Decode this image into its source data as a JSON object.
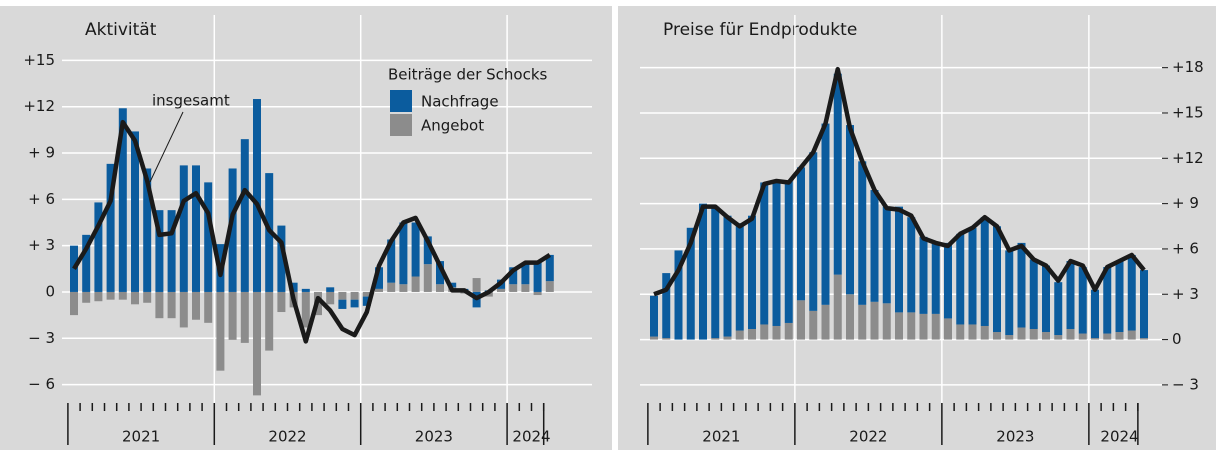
{
  "chart_data": [
    {
      "type": "bar",
      "title": "Aktivität",
      "categories": [
        null,
        null,
        null,
        null,
        null,
        null,
        null,
        null,
        null,
        null,
        null,
        null,
        null,
        null,
        null,
        null,
        null,
        null,
        null,
        null,
        null,
        null,
        null,
        null,
        null,
        null,
        null,
        null,
        null,
        null,
        null,
        null,
        null,
        null,
        null,
        null,
        null,
        null,
        null,
        null
      ],
      "years": [
        "2021",
        "2022",
        "2023",
        "2024"
      ],
      "series": [
        {
          "name": "Nachfrage",
          "color": "#0b5c9e",
          "kind": "bar",
          "values": [
            3.0,
            3.7,
            5.8,
            8.3,
            11.9,
            10.4,
            8.0,
            5.3,
            5.3,
            8.2,
            8.2,
            7.1,
            3.1,
            8.0,
            9.9,
            12.5,
            7.7,
            4.3,
            0.6,
            0.2,
            0,
            0.3,
            -0.6,
            -0.5,
            -0.6,
            1.4,
            2.8,
            4.0,
            3.5,
            1.8,
            1.5,
            0.3,
            0.2,
            -1.0,
            0.1,
            0.6,
            1.1,
            1.3,
            2.0,
            1.7
          ]
        },
        {
          "name": "Angebot",
          "color": "#8c8c8c",
          "kind": "bar",
          "values": [
            -1.5,
            -0.7,
            -0.6,
            -0.5,
            -0.5,
            -0.8,
            -0.7,
            -1.7,
            -1.7,
            -2.3,
            -1.8,
            -2.0,
            -5.1,
            -3.1,
            -3.3,
            -6.7,
            -3.8,
            -1.3,
            -1.0,
            -2.3,
            -1.5,
            -0.8,
            -0.5,
            -0.5,
            -0.3,
            0.2,
            0.6,
            0.5,
            1.0,
            1.8,
            0.5,
            0.3,
            -0.1,
            0.9,
            -0.3,
            0.2,
            0.5,
            0.5,
            -0.2,
            0.7
          ]
        },
        {
          "name": "insgesamt",
          "color": "#1a1a1a",
          "kind": "line",
          "values": [
            1.5,
            2.8,
            4.3,
            5.9,
            11.0,
            9.8,
            7.2,
            3.7,
            3.8,
            5.9,
            6.4,
            5.1,
            1.1,
            5.0,
            6.6,
            5.7,
            4.0,
            3.2,
            -0.5,
            -3.2,
            -0.4,
            -1.2,
            -2.4,
            -2.8,
            -1.3,
            1.7,
            3.3,
            4.5,
            4.8,
            3.3,
            1.7,
            0.1,
            0.1,
            -0.4,
            0,
            0.6,
            1.4,
            1.9,
            1.9,
            2.4
          ]
        }
      ],
      "legend": true,
      "legend_title": "Beiträge der Schocks",
      "ylim": [
        -7,
        16
      ],
      "yticks": [
        {
          "value": 15,
          "label": "+15"
        },
        {
          "value": 12,
          "label": "+12"
        },
        {
          "value": 9,
          "label": "+ 9"
        },
        {
          "value": 6,
          "label": "+ 6"
        },
        {
          "value": 3,
          "label": "+ 3"
        },
        0,
        {
          "value": -3,
          "label": "− 3"
        },
        {
          "value": -6,
          "label": "− 6"
        }
      ],
      "axis_side": "left",
      "grid": true
    },
    {
      "type": "bar",
      "title": "Preise für Endprodukte",
      "categories": [
        null,
        null,
        null,
        null,
        null,
        null,
        null,
        null,
        null,
        null,
        null,
        null,
        null,
        null,
        null,
        null,
        null,
        null,
        null,
        null,
        null,
        null,
        null,
        null,
        null,
        null,
        null,
        null,
        null,
        null,
        null,
        null,
        null,
        null,
        null,
        null,
        null,
        null,
        null,
        null,
        null
      ],
      "years": [
        "2021",
        "2022",
        "2023",
        "2024"
      ],
      "series": [
        {
          "color": "#0b5c9e",
          "kind": "bar",
          "values": [
            2.7,
            4.3,
            5.9,
            7.4,
            9.0,
            8.7,
            8.0,
            7.1,
            7.5,
            9.4,
            9.6,
            9.4,
            8.8,
            10.5,
            12.0,
            13.3,
            11.2,
            9.5,
            7.4,
            6.4,
            7.0,
            6.3,
            5.1,
            4.7,
            5.0,
            6.0,
            6.4,
            7.2,
            7.0,
            5.6,
            5.6,
            4.6,
            4.4,
            3.5,
            4.5,
            4.4,
            3.2,
            4.4,
            4.7,
            5.0,
            4.5
          ]
        },
        {
          "color": "#8c8c8c",
          "kind": "bar",
          "values": [
            0.2,
            0.1,
            0,
            0,
            0,
            0.1,
            0.2,
            0.6,
            0.7,
            1.0,
            0.9,
            1.1,
            2.6,
            1.9,
            2.3,
            4.3,
            3.0,
            2.3,
            2.5,
            2.4,
            1.8,
            1.8,
            1.7,
            1.7,
            1.4,
            1.0,
            1.0,
            0.9,
            0.5,
            0.3,
            0.8,
            0.7,
            0.5,
            0.3,
            0.7,
            0.4,
            0.1,
            0.4,
            0.5,
            0.6,
            0.1
          ]
        },
        {
          "color": "#1a1a1a",
          "kind": "line",
          "values": [
            3.0,
            3.3,
            4.6,
            6.4,
            8.8,
            8.8,
            8.1,
            7.5,
            8.0,
            10.3,
            10.5,
            10.4,
            11.4,
            12.4,
            14.3,
            17.9,
            14.0,
            11.8,
            9.9,
            8.7,
            8.6,
            8.2,
            6.7,
            6.4,
            6.2,
            7.0,
            7.4,
            8.1,
            7.5,
            5.9,
            6.2,
            5.3,
            4.9,
            3.9,
            5.2,
            4.9,
            3.3,
            4.8,
            5.2,
            5.6,
            4.6
          ]
        }
      ],
      "legend": false,
      "ylim": [
        -4,
        19.5
      ],
      "yticks": [
        {
          "value": 18,
          "label": "+18"
        },
        {
          "value": 15,
          "label": "+15"
        },
        {
          "value": 12,
          "label": "+12"
        },
        {
          "value": 9,
          "label": "+ 9"
        },
        {
          "value": 6,
          "label": "+ 6"
        },
        {
          "value": 3,
          "label": "+ 3"
        },
        0,
        {
          "value": -3,
          "label": "− 3"
        }
      ],
      "axis_side": "right",
      "grid": true
    }
  ]
}
